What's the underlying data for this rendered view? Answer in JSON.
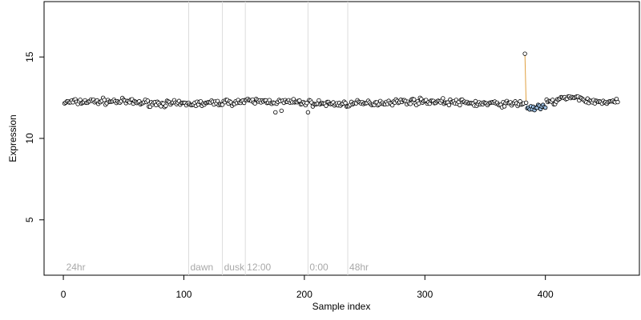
{
  "chart_data": {
    "type": "scatter",
    "xlabel": "Sample index",
    "ylabel": "Expression",
    "xlim": [
      -16,
      478
    ],
    "ylim": [
      1.6,
      18.4
    ],
    "x_ticks": [
      0,
      100,
      200,
      300,
      400
    ],
    "y_ticks": [
      5,
      10,
      15
    ],
    "grid": false,
    "point_count": 460,
    "baseline": 12.2,
    "regions": [
      {
        "label": "24hr",
        "start": 1
      },
      {
        "label": "dawn",
        "start": 104
      },
      {
        "label": "dusk",
        "start": 132
      },
      {
        "label": "12:00",
        "start": 151
      },
      {
        "label": "0:00",
        "start": 203
      },
      {
        "label": "48hr",
        "start": 236
      }
    ],
    "highlight_segments": [
      {
        "start": 148,
        "end": 152,
        "color": "#e0a040"
      },
      {
        "start": 383,
        "end": 384,
        "color": "#e0a040"
      },
      {
        "start": 384,
        "end": 400,
        "color": "#8fb8e0"
      }
    ],
    "point_fill_colors": {
      "default": "#ffffff",
      "blue_region": "#9ec2e6"
    },
    "notable_points": [
      {
        "x": 383,
        "y": 15.2
      },
      {
        "x": 176,
        "y": 11.6
      },
      {
        "x": 181,
        "y": 11.7
      },
      {
        "x": 203,
        "y": 11.6
      }
    ]
  }
}
